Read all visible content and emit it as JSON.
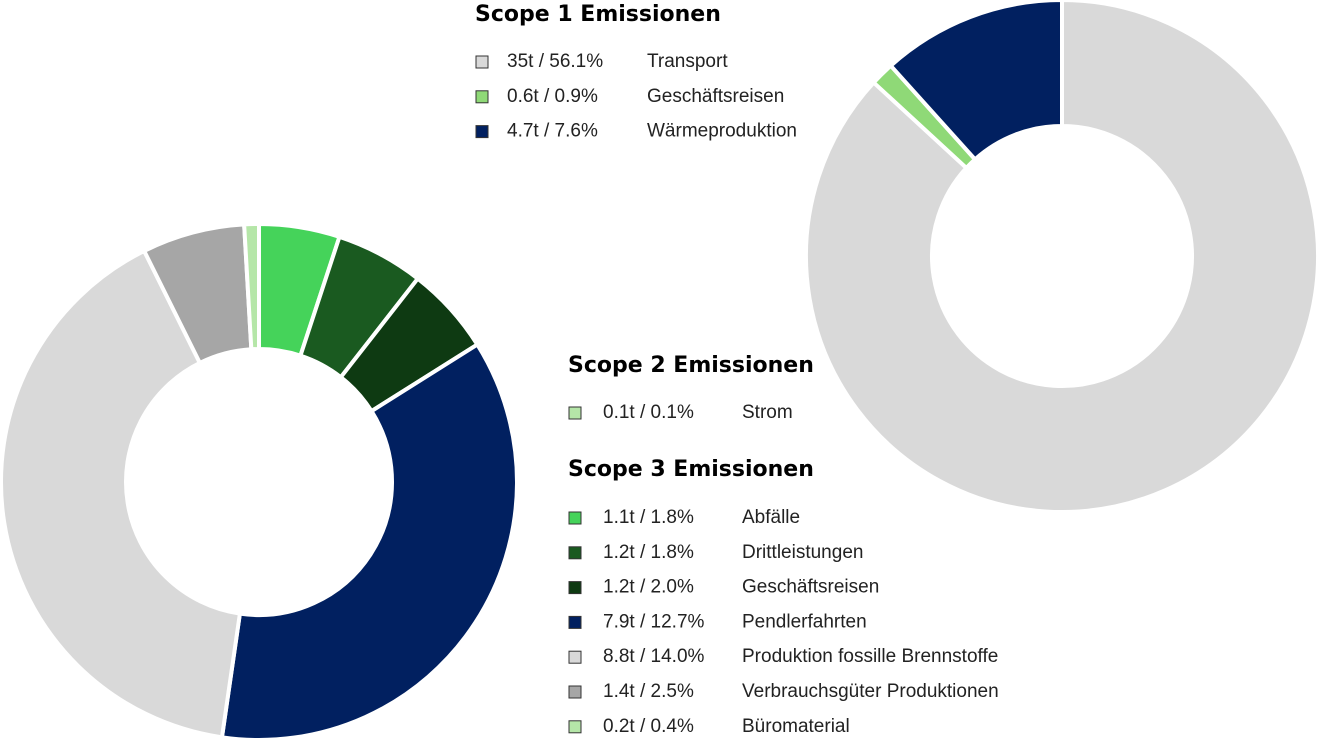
{
  "groups": [
    {
      "title": "Scope 1 Emissionen",
      "items": [
        {
          "value_label": "35t / 56.1%",
          "tons": 35,
          "percent": 56.1,
          "label": "Transport",
          "color": "#d9d9d9"
        },
        {
          "value_label": "0.6t / 0.9%",
          "tons": 0.6,
          "percent": 0.9,
          "label": "Geschäftsreisen",
          "color": "#8fd977"
        },
        {
          "value_label": "4.7t / 7.6%",
          "tons": 4.7,
          "percent": 7.6,
          "label": "Wärmeproduktion",
          "color": "#012060"
        }
      ]
    },
    {
      "title": "Scope 2 Emissionen",
      "items": [
        {
          "value_label": "0.1t / 0.1%",
          "tons": 0.1,
          "percent": 0.1,
          "label": "Strom",
          "color": "#b5e6a8"
        }
      ]
    },
    {
      "title": "Scope 3 Emissionen",
      "items": [
        {
          "value_label": "1.1t / 1.8%",
          "tons": 1.1,
          "percent": 1.8,
          "label": "Abfälle",
          "color": "#45d35a"
        },
        {
          "value_label": "1.2t / 1.8%",
          "tons": 1.2,
          "percent": 1.8,
          "label": "Drittleistungen",
          "color": "#1a5a20"
        },
        {
          "value_label": "1.2t / 2.0%",
          "tons": 1.2,
          "percent": 2.0,
          "label": "Geschäftsreisen",
          "color": "#0e3a12"
        },
        {
          "value_label": "7.9t / 12.7%",
          "tons": 7.9,
          "percent": 12.7,
          "label": "Pendlerfahrten",
          "color": "#012060"
        },
        {
          "value_label": "8.8t / 14.0%",
          "tons": 8.8,
          "percent": 14.0,
          "label": "Produktion fossille Brennstoffe",
          "color": "#d9d9d9"
        },
        {
          "value_label": "1.4t / 2.5%",
          "tons": 1.4,
          "percent": 2.5,
          "label": "Verbrauchsgüter Produktionen",
          "color": "#a6a6a6"
        },
        {
          "value_label": "0.2t / 0.4%",
          "tons": 0.2,
          "percent": 0.4,
          "label": "Büromaterial",
          "color": "#b5e6a8"
        }
      ]
    }
  ]
}
